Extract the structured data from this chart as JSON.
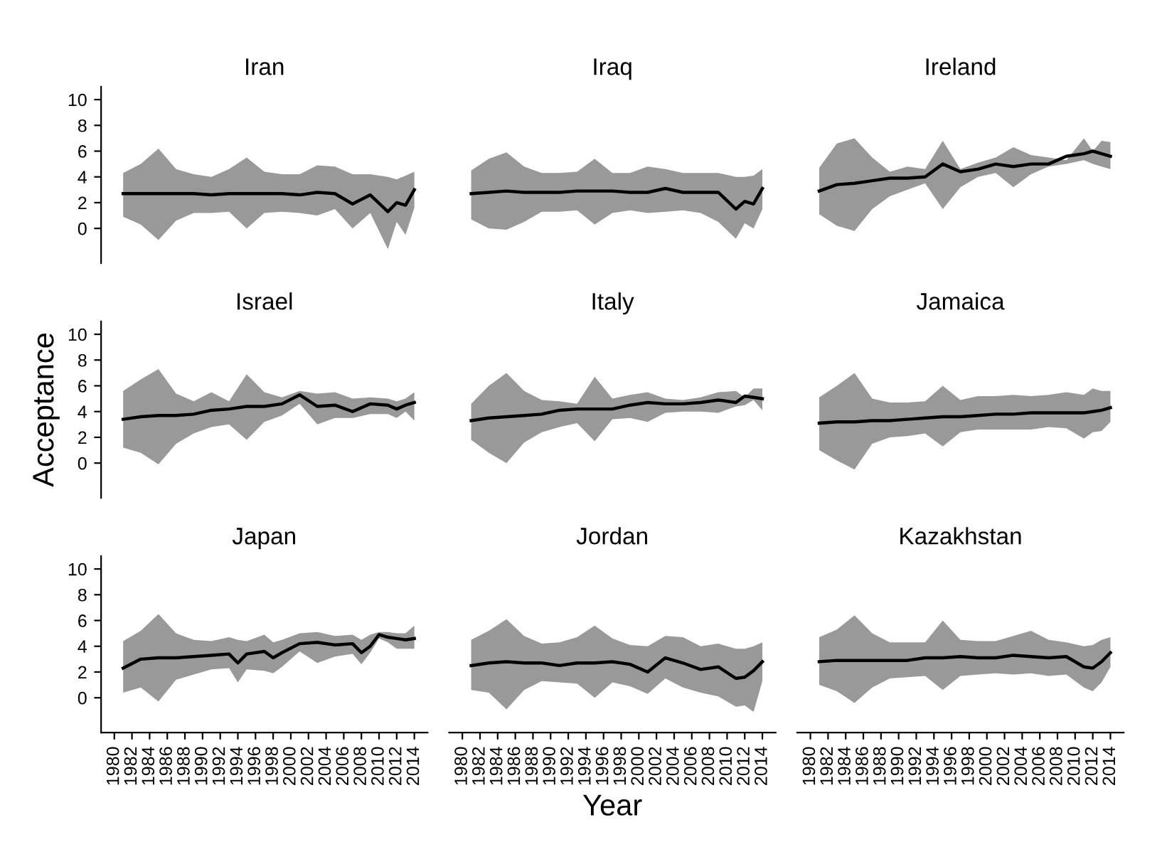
{
  "chart_data": [
    {
      "type": "line",
      "title": "Iran",
      "tick_labels": "y",
      "ylim": [
        -2.7,
        11
      ],
      "yticks": [
        0,
        2,
        4,
        6,
        8,
        10
      ],
      "xticks": [
        1980,
        1982,
        1984,
        1986,
        1988,
        1990,
        1992,
        1994,
        1996,
        1998,
        2000,
        2002,
        2004,
        2006,
        2008,
        2010,
        2012,
        2014
      ],
      "grid": false,
      "legend": false,
      "x": [
        1981,
        1983,
        1985,
        1987,
        1989,
        1991,
        1993,
        1995,
        1997,
        1999,
        2001,
        2003,
        2005,
        2007,
        2009,
        2011,
        2012,
        2013,
        2014
      ],
      "series": [
        {
          "color": "#000000",
          "values": [
            2.7,
            2.7,
            2.7,
            2.7,
            2.7,
            2.6,
            2.7,
            2.7,
            2.7,
            2.7,
            2.6,
            2.8,
            2.7,
            1.9,
            2.6,
            1.3,
            2.0,
            1.8,
            3.0
          ],
          "upper": [
            4.3,
            5.0,
            6.2,
            4.6,
            4.2,
            4.0,
            4.6,
            5.5,
            4.4,
            4.2,
            4.2,
            4.9,
            4.8,
            4.2,
            4.2,
            4.0,
            3.8,
            4.1,
            4.4
          ],
          "lower": [
            0.9,
            0.3,
            -0.9,
            0.6,
            1.2,
            1.2,
            1.3,
            0.0,
            1.2,
            1.3,
            1.2,
            1.0,
            1.5,
            0.0,
            1.2,
            -1.6,
            0.5,
            -0.5,
            1.6
          ]
        }
      ]
    },
    {
      "type": "line",
      "title": "Iraq",
      "tick_labels": false,
      "yticks": [
        0,
        2,
        4,
        6,
        8,
        10
      ],
      "xticks": [
        1980,
        1982,
        1984,
        1986,
        1988,
        1990,
        1992,
        1994,
        1996,
        1998,
        2000,
        2002,
        2004,
        2006,
        2008,
        2010,
        2012,
        2014
      ],
      "grid": false,
      "legend": false,
      "x": [
        1981,
        1983,
        1985,
        1987,
        1989,
        1991,
        1993,
        1995,
        1997,
        1999,
        2001,
        2003,
        2005,
        2007,
        2009,
        2011,
        2012,
        2013,
        2014
      ],
      "series": [
        {
          "color": "#000000",
          "values": [
            2.7,
            2.8,
            2.9,
            2.8,
            2.8,
            2.8,
            2.9,
            2.9,
            2.9,
            2.8,
            2.8,
            3.1,
            2.8,
            2.8,
            2.8,
            1.5,
            2.1,
            1.9,
            3.1
          ],
          "upper": [
            4.5,
            5.4,
            5.9,
            4.8,
            4.3,
            4.3,
            4.4,
            5.4,
            4.3,
            4.3,
            4.8,
            4.6,
            4.3,
            4.3,
            4.3,
            4.0,
            4.0,
            4.1,
            4.6
          ],
          "lower": [
            0.7,
            0.0,
            -0.1,
            0.5,
            1.3,
            1.3,
            1.4,
            0.3,
            1.2,
            1.4,
            1.2,
            1.3,
            1.4,
            1.2,
            0.5,
            -0.8,
            0.4,
            0.0,
            1.5
          ]
        }
      ]
    },
    {
      "type": "line",
      "title": "Ireland",
      "tick_labels": false,
      "yticks": [
        0,
        2,
        4,
        6,
        8,
        10
      ],
      "xticks": [
        1980,
        1982,
        1984,
        1986,
        1988,
        1990,
        1992,
        1994,
        1996,
        1998,
        2000,
        2002,
        2004,
        2006,
        2008,
        2010,
        2012,
        2014
      ],
      "grid": false,
      "legend": false,
      "x": [
        1981,
        1983,
        1985,
        1987,
        1989,
        1991,
        1993,
        1995,
        1997,
        1999,
        2001,
        2003,
        2005,
        2007,
        2009,
        2011,
        2012,
        2013,
        2014
      ],
      "series": [
        {
          "color": "#000000",
          "values": [
            2.9,
            3.4,
            3.5,
            3.7,
            3.9,
            3.9,
            4.0,
            5.0,
            4.4,
            4.6,
            5.0,
            4.8,
            5.0,
            5.0,
            5.6,
            5.8,
            6.0,
            5.8,
            5.6
          ],
          "upper": [
            4.7,
            6.6,
            7.0,
            5.5,
            4.4,
            4.8,
            4.6,
            6.8,
            4.6,
            5.1,
            5.5,
            6.3,
            5.7,
            5.5,
            5.3,
            7.0,
            6.0,
            6.8,
            6.7
          ],
          "lower": [
            1.1,
            0.2,
            -0.2,
            1.5,
            2.5,
            3.0,
            3.5,
            1.5,
            3.2,
            4.0,
            4.3,
            3.2,
            4.2,
            4.8,
            5.0,
            5.3,
            5.0,
            4.8,
            4.6
          ]
        }
      ]
    },
    {
      "type": "line",
      "title": "Israel",
      "tick_labels": "y",
      "ylabel": "Acceptance",
      "ylim": [
        -2.7,
        11
      ],
      "yticks": [
        0,
        2,
        4,
        6,
        8,
        10
      ],
      "xticks": [
        1980,
        1982,
        1984,
        1986,
        1988,
        1990,
        1992,
        1994,
        1996,
        1998,
        2000,
        2002,
        2004,
        2006,
        2008,
        2010,
        2012,
        2014
      ],
      "grid": false,
      "legend": false,
      "x": [
        1981,
        1983,
        1985,
        1987,
        1989,
        1991,
        1993,
        1995,
        1997,
        1999,
        2001,
        2003,
        2005,
        2007,
        2009,
        2011,
        2012,
        2013,
        2014
      ],
      "series": [
        {
          "color": "#000000",
          "values": [
            3.4,
            3.6,
            3.7,
            3.7,
            3.8,
            4.1,
            4.2,
            4.4,
            4.4,
            4.6,
            5.3,
            4.4,
            4.5,
            4.0,
            4.6,
            4.5,
            4.2,
            4.5,
            4.7
          ],
          "upper": [
            5.6,
            6.5,
            7.3,
            5.4,
            4.8,
            5.5,
            4.8,
            6.9,
            5.5,
            5.1,
            5.6,
            5.4,
            5.5,
            5.0,
            5.1,
            5.0,
            4.8,
            5.0,
            5.5
          ],
          "lower": [
            1.2,
            0.8,
            -0.1,
            1.5,
            2.3,
            2.8,
            3.0,
            1.8,
            3.2,
            3.7,
            4.6,
            3.0,
            3.5,
            3.5,
            3.8,
            3.8,
            3.5,
            4.0,
            3.3
          ]
        }
      ]
    },
    {
      "type": "line",
      "title": "Italy",
      "tick_labels": false,
      "yticks": [
        0,
        2,
        4,
        6,
        8,
        10
      ],
      "xticks": [
        1980,
        1982,
        1984,
        1986,
        1988,
        1990,
        1992,
        1994,
        1996,
        1998,
        2000,
        2002,
        2004,
        2006,
        2008,
        2010,
        2012,
        2014
      ],
      "grid": false,
      "legend": false,
      "x": [
        1981,
        1983,
        1985,
        1987,
        1989,
        1991,
        1993,
        1995,
        1997,
        1999,
        2001,
        2003,
        2005,
        2007,
        2009,
        2011,
        2012,
        2013,
        2014
      ],
      "series": [
        {
          "color": "#000000",
          "values": [
            3.3,
            3.5,
            3.6,
            3.7,
            3.8,
            4.1,
            4.2,
            4.2,
            4.2,
            4.5,
            4.7,
            4.6,
            4.6,
            4.7,
            4.9,
            4.7,
            5.2,
            5.1,
            5.0
          ],
          "upper": [
            4.6,
            6.0,
            7.0,
            5.6,
            4.9,
            4.8,
            4.6,
            6.7,
            5.0,
            5.3,
            5.5,
            5.0,
            4.9,
            5.1,
            5.5,
            5.6,
            5.1,
            5.8,
            5.8
          ],
          "lower": [
            1.8,
            0.8,
            0.0,
            1.6,
            2.4,
            2.8,
            3.1,
            1.7,
            3.4,
            3.5,
            3.2,
            3.9,
            4.0,
            4.0,
            3.9,
            4.4,
            4.5,
            4.9,
            4.1
          ]
        }
      ]
    },
    {
      "type": "line",
      "title": "Jamaica",
      "tick_labels": false,
      "yticks": [
        0,
        2,
        4,
        6,
        8,
        10
      ],
      "xticks": [
        1980,
        1982,
        1984,
        1986,
        1988,
        1990,
        1992,
        1994,
        1996,
        1998,
        2000,
        2002,
        2004,
        2006,
        2008,
        2010,
        2012,
        2014
      ],
      "grid": false,
      "legend": false,
      "x": [
        1981,
        1983,
        1985,
        1987,
        1989,
        1991,
        1993,
        1995,
        1997,
        1999,
        2001,
        2003,
        2005,
        2007,
        2009,
        2011,
        2012,
        2013,
        2014
      ],
      "series": [
        {
          "color": "#000000",
          "values": [
            3.1,
            3.2,
            3.2,
            3.3,
            3.3,
            3.4,
            3.5,
            3.6,
            3.6,
            3.7,
            3.8,
            3.8,
            3.9,
            3.9,
            3.9,
            3.9,
            4.0,
            4.1,
            4.3
          ],
          "upper": [
            5.1,
            6.0,
            7.0,
            5.0,
            4.7,
            4.7,
            4.8,
            6.0,
            4.9,
            5.2,
            5.2,
            5.3,
            5.2,
            5.3,
            5.5,
            5.3,
            5.8,
            5.6,
            5.6
          ],
          "lower": [
            1.0,
            0.2,
            -0.5,
            1.5,
            2.0,
            2.1,
            2.3,
            1.3,
            2.4,
            2.6,
            2.6,
            2.6,
            2.6,
            2.8,
            2.7,
            1.9,
            2.4,
            2.5,
            3.2
          ]
        }
      ]
    },
    {
      "type": "line",
      "title": "Japan",
      "xlim": [
        1978.5,
        2015.5
      ],
      "ylim": [
        -2.7,
        11
      ],
      "yticks": [
        0,
        2,
        4,
        6,
        8,
        10
      ],
      "xticks": [
        1980,
        1982,
        1984,
        1986,
        1988,
        1990,
        1992,
        1994,
        1996,
        1998,
        2000,
        2002,
        2004,
        2006,
        2008,
        2010,
        2012,
        2014
      ],
      "grid": false,
      "legend": false,
      "x": [
        1981,
        1983,
        1985,
        1987,
        1989,
        1991,
        1993,
        1994,
        1995,
        1997,
        1998,
        1999,
        2001,
        2003,
        2005,
        2007,
        2008,
        2009,
        2010,
        2011,
        2012,
        2013,
        2014
      ],
      "series": [
        {
          "color": "#000000",
          "values": [
            2.3,
            3.0,
            3.1,
            3.1,
            3.2,
            3.3,
            3.4,
            2.7,
            3.4,
            3.6,
            3.1,
            3.5,
            4.2,
            4.3,
            4.1,
            4.2,
            3.5,
            4.0,
            4.9,
            4.7,
            4.6,
            4.5,
            4.6
          ],
          "upper": [
            4.4,
            5.2,
            6.5,
            5.0,
            4.5,
            4.4,
            4.7,
            4.5,
            4.4,
            4.9,
            4.3,
            4.5,
            5.0,
            5.1,
            4.8,
            4.9,
            4.5,
            4.9,
            5.1,
            5.1,
            5.0,
            5.0,
            5.6
          ],
          "lower": [
            0.4,
            0.8,
            -0.3,
            1.4,
            1.8,
            2.2,
            2.3,
            1.2,
            2.2,
            2.1,
            1.9,
            2.4,
            3.6,
            2.7,
            3.2,
            3.4,
            2.6,
            3.5,
            4.6,
            4.3,
            3.8,
            3.8,
            3.8
          ]
        }
      ]
    },
    {
      "type": "line",
      "title": "Jordan",
      "tick_labels": "x",
      "xlabel": "Year",
      "xlim": [
        1978.5,
        2015.5
      ],
      "yticks": [
        0,
        2,
        4,
        6,
        8,
        10
      ],
      "xticks": [
        1980,
        1982,
        1984,
        1986,
        1988,
        1990,
        1992,
        1994,
        1996,
        1998,
        2000,
        2002,
        2004,
        2006,
        2008,
        2010,
        2012,
        2014
      ],
      "grid": false,
      "legend": false,
      "x": [
        1981,
        1983,
        1985,
        1987,
        1989,
        1991,
        1993,
        1995,
        1997,
        1999,
        2001,
        2003,
        2005,
        2007,
        2009,
        2011,
        2012,
        2013,
        2014
      ],
      "series": [
        {
          "color": "#000000",
          "values": [
            2.5,
            2.7,
            2.8,
            2.7,
            2.7,
            2.5,
            2.7,
            2.7,
            2.8,
            2.6,
            2.0,
            3.1,
            2.7,
            2.2,
            2.4,
            1.5,
            1.6,
            2.1,
            2.8
          ],
          "upper": [
            4.5,
            5.2,
            6.1,
            4.8,
            4.2,
            4.3,
            4.7,
            5.6,
            4.6,
            4.1,
            4.0,
            4.8,
            4.7,
            4.0,
            4.2,
            3.8,
            3.8,
            4.0,
            4.3
          ],
          "lower": [
            0.6,
            0.4,
            -0.9,
            0.6,
            1.3,
            1.2,
            1.1,
            0.0,
            1.2,
            0.9,
            0.3,
            1.5,
            0.8,
            0.4,
            0.1,
            -0.7,
            -0.6,
            -1.1,
            1.3
          ]
        }
      ]
    },
    {
      "type": "line",
      "title": "Kazakhstan",
      "tick_labels": "x",
      "xlim": [
        1978.5,
        2015.5
      ],
      "yticks": [
        0,
        2,
        4,
        6,
        8,
        10
      ],
      "xticks": [
        1980,
        1982,
        1984,
        1986,
        1988,
        1990,
        1992,
        1994,
        1996,
        1998,
        2000,
        2002,
        2004,
        2006,
        2008,
        2010,
        2012,
        2014
      ],
      "grid": false,
      "legend": false,
      "x": [
        1981,
        1983,
        1985,
        1987,
        1989,
        1991,
        1993,
        1995,
        1997,
        1999,
        2001,
        2003,
        2005,
        2007,
        2009,
        2011,
        2012,
        2013,
        2014
      ],
      "series": [
        {
          "color": "#000000",
          "values": [
            2.8,
            2.9,
            2.9,
            2.9,
            2.9,
            2.9,
            3.1,
            3.1,
            3.2,
            3.1,
            3.1,
            3.3,
            3.2,
            3.1,
            3.2,
            2.4,
            2.3,
            2.8,
            3.5
          ],
          "upper": [
            4.7,
            5.3,
            6.4,
            5.0,
            4.3,
            4.3,
            4.3,
            6.0,
            4.5,
            4.4,
            4.4,
            4.8,
            5.2,
            4.5,
            4.3,
            4.0,
            4.1,
            4.5,
            4.7
          ],
          "lower": [
            1.0,
            0.5,
            -0.4,
            0.8,
            1.5,
            1.6,
            1.7,
            0.6,
            1.7,
            1.8,
            1.9,
            1.8,
            1.9,
            1.7,
            1.8,
            0.8,
            0.5,
            1.2,
            2.4
          ]
        }
      ]
    }
  ]
}
